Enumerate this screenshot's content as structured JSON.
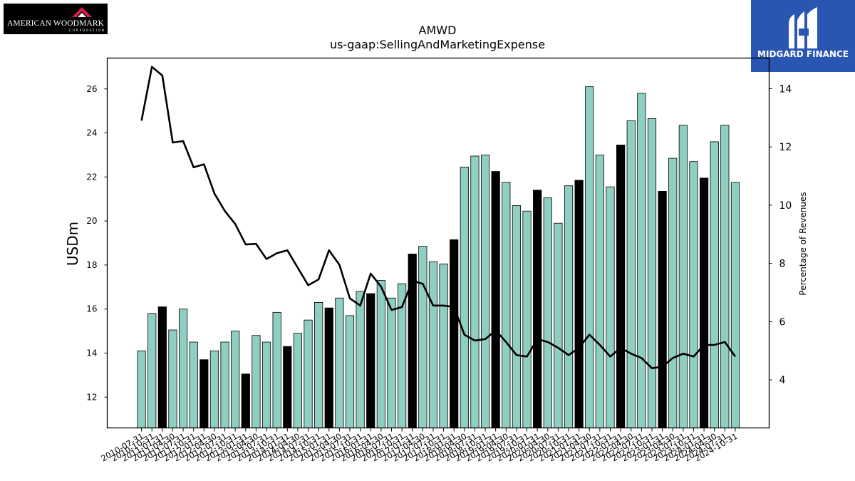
{
  "logos": {
    "left": {
      "name": "AMERICAN WOODMARK",
      "sub": "CORPORATION"
    },
    "right": {
      "name": "MIDGARD FINANCE"
    }
  },
  "colors": {
    "bar": "#8ecfc2",
    "bar_highlight": "#000000",
    "line": "#000000"
  },
  "chart_data": {
    "type": "bar",
    "title": "AMWD",
    "subtitle": "us-gaap:SellingAndMarketingExpense",
    "ylabel": "USDm",
    "y2label": "Percentage of Revenues",
    "ylim": [
      10.6,
      27.4
    ],
    "y2lim": [
      2.35,
      15.05
    ],
    "yticks": [
      12,
      14,
      16,
      18,
      20,
      22,
      24,
      26
    ],
    "y2ticks": [
      4,
      6,
      8,
      10,
      12,
      14
    ],
    "grid": false,
    "categories": [
      "2010-07-31",
      "2010-10-31",
      "2011-01-31",
      "2011-04-30",
      "2011-07-31",
      "2011-10-31",
      "2012-01-31",
      "2012-04-30",
      "2012-07-31",
      "2012-10-31",
      "2013-01-31",
      "2013-04-30",
      "2013-07-31",
      "2013-10-31",
      "2014-01-31",
      "2014-04-30",
      "2014-07-31",
      "2014-10-31",
      "2015-01-31",
      "2015-04-30",
      "2015-07-31",
      "2015-10-31",
      "2016-01-31",
      "2016-04-30",
      "2016-07-31",
      "2016-10-31",
      "2017-01-31",
      "2017-04-30",
      "2017-07-31",
      "2017-10-31",
      "2018-01-31",
      "2018-04-30",
      "2018-07-31",
      "2018-10-31",
      "2019-01-31",
      "2019-04-30",
      "2019-07-31",
      "2019-10-31",
      "2020-01-31",
      "2020-04-30",
      "2020-07-31",
      "2020-10-31",
      "2021-01-31",
      "2021-04-30",
      "2021-07-31",
      "2021-10-31",
      "2022-01-31",
      "2022-04-30",
      "2022-07-31",
      "2022-10-31",
      "2023-01-31",
      "2023-04-30",
      "2023-07-31",
      "2023-10-31",
      "2024-01-31",
      "2024-04-30",
      "2024-07-31",
      "2024-10-31"
    ],
    "xtick_labels": [
      "2010-07-31",
      "2010-10-31",
      "2011-01-31",
      "2011-04-30",
      "2011-07-31",
      "2011-10-31",
      "2012-01-31",
      "2012-04-30",
      "2012-07-31",
      "2012-10-31",
      "2013-01-31",
      "2013-04-30",
      "2013-07-31",
      "2013-10-31",
      "2014-01-31",
      "2014-04-30",
      "2014-07-31",
      "2014-10-31",
      "2015-01-31",
      "2015-04-30",
      "2015-07-31",
      "2015-10-31",
      "2016-01-31",
      "2016-04-30",
      "2016-07-31",
      "2016-10-31",
      "2017-01-31",
      "2017-04-30",
      "2017-07-31",
      "2017-10-31",
      "2018-01-31",
      "2018-04-30",
      "2018-07-31",
      "2018-10-31",
      "2019-01-31",
      "2019-04-30",
      "2019-07-31",
      "2019-10-31",
      "2020-01-31",
      "2020-04-30",
      "2020-07-31",
      "2020-10-31",
      "2021-01-31",
      "2021-04-30",
      "2021-07-31",
      "2021-10-31",
      "2022-01-31",
      "2022-04-30",
      "2022-07-31",
      "2022-10-31",
      "2023-01-31",
      "2023-04-30",
      "2023-07-31",
      "2023-10-31",
      "2024-01-31",
      "2024-04-30",
      "2024-07-31",
      "2024-10-31"
    ],
    "series": [
      {
        "type": "bar",
        "axis": "left",
        "values": [
          14.1,
          15.8,
          16.1,
          15.05,
          16.0,
          14.5,
          13.7,
          14.1,
          14.5,
          15.0,
          13.05,
          14.8,
          14.5,
          15.85,
          14.3,
          14.9,
          15.5,
          16.3,
          16.05,
          16.5,
          15.7,
          16.8,
          16.7,
          17.3,
          16.5,
          17.15,
          18.5,
          18.85,
          18.15,
          18.05,
          19.15,
          22.45,
          22.95,
          23.0,
          22.25,
          21.75,
          20.7,
          20.45,
          21.4,
          21.05,
          19.9,
          21.6,
          21.85,
          26.1,
          23.0,
          21.55,
          23.45,
          24.55,
          25.8,
          24.65,
          21.35,
          22.85,
          24.35,
          22.7,
          21.95,
          23.6,
          24.35,
          21.75
        ],
        "highlight": [
          false,
          false,
          true,
          false,
          false,
          false,
          true,
          false,
          false,
          false,
          true,
          false,
          false,
          false,
          true,
          false,
          false,
          false,
          true,
          false,
          false,
          false,
          true,
          false,
          false,
          false,
          true,
          false,
          false,
          false,
          true,
          false,
          false,
          false,
          true,
          false,
          false,
          false,
          true,
          false,
          false,
          false,
          true,
          false,
          false,
          false,
          true,
          false,
          false,
          false,
          true,
          false,
          false,
          false,
          true,
          false,
          false,
          false
        ]
      },
      {
        "type": "line",
        "axis": "right",
        "values": [
          12.9,
          14.75,
          14.45,
          12.15,
          12.2,
          11.3,
          11.4,
          10.4,
          9.8,
          9.35,
          8.65,
          8.67,
          8.15,
          8.35,
          8.45,
          7.85,
          7.25,
          7.45,
          8.45,
          7.95,
          6.8,
          6.55,
          7.65,
          7.2,
          6.4,
          6.5,
          7.4,
          7.3,
          6.55,
          6.55,
          6.5,
          5.55,
          5.35,
          5.4,
          5.7,
          5.3,
          4.85,
          4.8,
          5.4,
          5.3,
          5.1,
          4.85,
          5.1,
          5.55,
          5.2,
          4.8,
          5.1,
          4.9,
          4.75,
          4.4,
          4.45,
          4.75,
          4.9,
          4.8,
          5.2,
          5.2,
          5.3,
          4.8
        ]
      }
    ]
  }
}
